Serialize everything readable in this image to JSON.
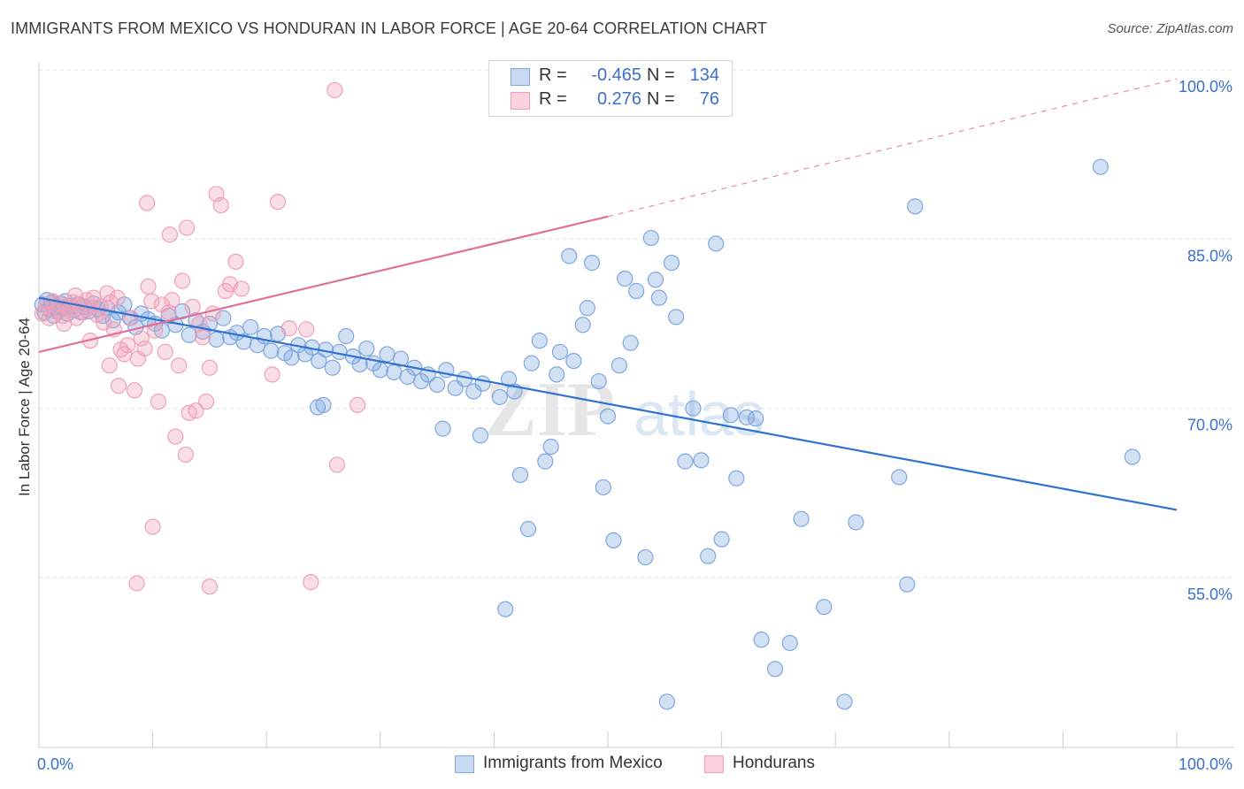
{
  "header": {
    "title": "IMMIGRANTS FROM MEXICO VS HONDURAN IN LABOR FORCE | AGE 20-64 CORRELATION CHART",
    "source": "Source: ZipAtlas.com"
  },
  "watermark": {
    "zip": "ZIP",
    "atlas": "atlas"
  },
  "legend": {
    "rows": [
      {
        "r_label": "R =",
        "r_value": "-0.465",
        "n_label": "N =",
        "n_value": "134",
        "color": "#7fa7e0"
      },
      {
        "r_label": "R =",
        "r_value": "0.276",
        "n_label": "N =",
        "n_value": "76",
        "color": "#f0a0b8"
      }
    ]
  },
  "bottom_legend": [
    {
      "label": "Immigrants from Mexico",
      "color": "#7fa7e0"
    },
    {
      "label": "Hondurans",
      "color": "#f0a0b8"
    }
  ],
  "chart_data": {
    "type": "scatter",
    "title": "IMMIGRANTS FROM MEXICO VS HONDURAN IN LABOR FORCE | AGE 20-64 CORRELATION CHART",
    "xlabel": "",
    "ylabel": "In Labor Force | Age 20-64",
    "xlim": [
      0,
      100
    ],
    "ylim": [
      40,
      103
    ],
    "x_tick_labels": [
      {
        "value": 0,
        "label": "0.0%"
      },
      {
        "value": 100,
        "label": "100.0%"
      }
    ],
    "y_tick_labels": [
      {
        "value": 55,
        "label": "55.0%"
      },
      {
        "value": 70,
        "label": "70.0%"
      },
      {
        "value": 85,
        "label": "85.0%"
      },
      {
        "value": 100,
        "label": "100.0%"
      }
    ],
    "grid": true,
    "legend_position": "top-center",
    "series": [
      {
        "name": "Immigrants from Mexico",
        "color": "#7fa7e0",
        "line_color": "#2f72d0",
        "trend": {
          "x0": 0,
          "y0": 79.8,
          "x1": 100,
          "y1": 61.0,
          "dashed_from": 100
        },
        "points": [
          [
            0.3,
            79.2
          ],
          [
            0.5,
            78.5
          ],
          [
            0.7,
            79.6
          ],
          [
            0.9,
            78.8
          ],
          [
            1.1,
            79.4
          ],
          [
            1.3,
            78.2
          ],
          [
            1.5,
            79.0
          ],
          [
            1.7,
            78.6
          ],
          [
            1.9,
            79.3
          ],
          [
            2.1,
            78.9
          ],
          [
            2.3,
            79.5
          ],
          [
            2.5,
            78.4
          ],
          [
            2.8,
            79.1
          ],
          [
            3.1,
            78.7
          ],
          [
            3.4,
            79.2
          ],
          [
            3.7,
            78.5
          ],
          [
            4.0,
            79.0
          ],
          [
            4.4,
            78.6
          ],
          [
            4.8,
            79.3
          ],
          [
            5.2,
            78.8
          ],
          [
            5.6,
            78.2
          ],
          [
            6.0,
            78.9
          ],
          [
            6.5,
            77.8
          ],
          [
            7.0,
            78.5
          ],
          [
            7.5,
            79.2
          ],
          [
            8.0,
            78.0
          ],
          [
            8.5,
            77.2
          ],
          [
            9.0,
            78.4
          ],
          [
            9.6,
            77.9
          ],
          [
            10.2,
            77.5
          ],
          [
            10.8,
            76.9
          ],
          [
            11.4,
            78.2
          ],
          [
            12.0,
            77.4
          ],
          [
            12.6,
            78.6
          ],
          [
            13.2,
            76.5
          ],
          [
            13.8,
            77.8
          ],
          [
            14.4,
            76.8
          ],
          [
            15.0,
            77.5
          ],
          [
            15.6,
            76.1
          ],
          [
            16.2,
            78.0
          ],
          [
            16.8,
            76.3
          ],
          [
            17.4,
            76.7
          ],
          [
            18.0,
            75.9
          ],
          [
            18.6,
            77.2
          ],
          [
            19.2,
            75.6
          ],
          [
            19.8,
            76.4
          ],
          [
            20.4,
            75.1
          ],
          [
            21.0,
            76.6
          ],
          [
            21.6,
            74.9
          ],
          [
            22.2,
            74.5
          ],
          [
            22.8,
            75.6
          ],
          [
            23.4,
            74.8
          ],
          [
            24.0,
            75.4
          ],
          [
            24.6,
            74.2
          ],
          [
            25.2,
            75.2
          ],
          [
            25.8,
            73.6
          ],
          [
            26.4,
            75.0
          ],
          [
            27.0,
            76.4
          ],
          [
            27.6,
            74.6
          ],
          [
            28.2,
            73.9
          ],
          [
            28.8,
            75.3
          ],
          [
            29.4,
            74.0
          ],
          [
            30.0,
            73.4
          ],
          [
            30.6,
            74.8
          ],
          [
            31.2,
            73.2
          ],
          [
            31.8,
            74.4
          ],
          [
            32.4,
            72.8
          ],
          [
            33.0,
            73.6
          ],
          [
            33.6,
            72.4
          ],
          [
            34.2,
            73.0
          ],
          [
            35.0,
            72.1
          ],
          [
            35.8,
            73.4
          ],
          [
            36.6,
            71.8
          ],
          [
            37.4,
            72.6
          ],
          [
            38.2,
            71.5
          ],
          [
            39.0,
            72.2
          ],
          [
            24.5,
            70.1
          ],
          [
            25.0,
            70.3
          ],
          [
            35.5,
            68.2
          ],
          [
            38.8,
            67.6
          ],
          [
            40.5,
            71.0
          ],
          [
            41.3,
            72.6
          ],
          [
            41.8,
            71.5
          ],
          [
            42.3,
            64.1
          ],
          [
            43.0,
            59.3
          ],
          [
            43.3,
            74.0
          ],
          [
            44.0,
            76.0
          ],
          [
            44.5,
            65.3
          ],
          [
            45.0,
            66.6
          ],
          [
            45.5,
            73.0
          ],
          [
            45.8,
            75.0
          ],
          [
            46.6,
            83.5
          ],
          [
            47.0,
            74.2
          ],
          [
            47.8,
            77.4
          ],
          [
            48.6,
            82.9
          ],
          [
            49.2,
            72.4
          ],
          [
            49.6,
            63.0
          ],
          [
            50.0,
            69.3
          ],
          [
            50.5,
            58.3
          ],
          [
            51.0,
            73.8
          ],
          [
            51.5,
            81.5
          ],
          [
            52.0,
            75.8
          ],
          [
            52.5,
            80.4
          ],
          [
            53.3,
            56.8
          ],
          [
            53.8,
            85.1
          ],
          [
            54.2,
            81.4
          ],
          [
            54.5,
            79.8
          ],
          [
            55.2,
            44.0
          ],
          [
            55.6,
            82.9
          ],
          [
            56.0,
            78.1
          ],
          [
            56.8,
            65.3
          ],
          [
            57.5,
            70.0
          ],
          [
            58.2,
            65.4
          ],
          [
            58.8,
            56.9
          ],
          [
            59.5,
            84.6
          ],
          [
            60.0,
            58.4
          ],
          [
            60.8,
            69.4
          ],
          [
            61.3,
            63.8
          ],
          [
            62.2,
            69.2
          ],
          [
            63.0,
            69.1
          ],
          [
            63.5,
            49.5
          ],
          [
            64.7,
            46.9
          ],
          [
            66.0,
            49.2
          ],
          [
            67.0,
            60.2
          ],
          [
            69.0,
            52.4
          ],
          [
            70.8,
            44.0
          ],
          [
            71.8,
            59.9
          ],
          [
            75.6,
            63.9
          ],
          [
            76.3,
            54.4
          ],
          [
            77.0,
            87.9
          ],
          [
            93.3,
            91.4
          ],
          [
            96.1,
            65.7
          ],
          [
            41.0,
            52.2
          ],
          [
            48.2,
            78.9
          ]
        ]
      },
      {
        "name": "Hondurans",
        "color": "#f0a0b8",
        "line_color": "#e0709a",
        "trend": {
          "x0": 0,
          "y0": 75.0,
          "x1": 50,
          "y1": 87.0,
          "dashed_to": 100,
          "y_at_100": 99.2
        },
        "points": [
          [
            0.3,
            78.4
          ],
          [
            0.6,
            79.1
          ],
          [
            0.9,
            78.0
          ],
          [
            1.2,
            79.5
          ],
          [
            1.5,
            78.6
          ],
          [
            1.8,
            79.3
          ],
          [
            2.1,
            78.2
          ],
          [
            2.4,
            79.0
          ],
          [
            2.7,
            78.7
          ],
          [
            3.0,
            79.4
          ],
          [
            3.3,
            78.0
          ],
          [
            3.6,
            79.2
          ],
          [
            3.9,
            78.5
          ],
          [
            4.2,
            79.6
          ],
          [
            4.5,
            78.9
          ],
          [
            4.8,
            79.8
          ],
          [
            5.1,
            78.3
          ],
          [
            5.4,
            79.0
          ],
          [
            5.7,
            77.6
          ],
          [
            6.0,
            80.2
          ],
          [
            6.3,
            79.4
          ],
          [
            6.6,
            77.0
          ],
          [
            6.9,
            79.8
          ],
          [
            7.2,
            75.2
          ],
          [
            7.5,
            74.8
          ],
          [
            7.8,
            75.6
          ],
          [
            8.1,
            78.0
          ],
          [
            8.4,
            71.6
          ],
          [
            8.7,
            74.4
          ],
          [
            9.0,
            76.2
          ],
          [
            9.3,
            75.3
          ],
          [
            9.6,
            80.8
          ],
          [
            9.9,
            79.5
          ],
          [
            10.2,
            76.9
          ],
          [
            10.5,
            70.6
          ],
          [
            10.8,
            79.2
          ],
          [
            11.1,
            75.0
          ],
          [
            11.4,
            78.5
          ],
          [
            11.7,
            79.6
          ],
          [
            12.0,
            67.5
          ],
          [
            12.3,
            73.8
          ],
          [
            12.6,
            81.3
          ],
          [
            12.9,
            65.9
          ],
          [
            13.2,
            69.6
          ],
          [
            13.5,
            79.0
          ],
          [
            13.8,
            69.8
          ],
          [
            14.1,
            77.5
          ],
          [
            14.4,
            76.3
          ],
          [
            14.7,
            70.6
          ],
          [
            15.0,
            73.6
          ],
          [
            15.3,
            78.4
          ],
          [
            15.6,
            89.0
          ],
          [
            16.0,
            88.0
          ],
          [
            16.4,
            80.4
          ],
          [
            16.8,
            81.0
          ],
          [
            17.3,
            83.0
          ],
          [
            17.8,
            80.6
          ],
          [
            20.5,
            73.0
          ],
          [
            21.0,
            88.3
          ],
          [
            22.0,
            77.1
          ],
          [
            23.5,
            77.0
          ],
          [
            23.9,
            54.6
          ],
          [
            26.0,
            98.2
          ],
          [
            26.2,
            65.0
          ],
          [
            28.0,
            70.3
          ],
          [
            9.5,
            88.2
          ],
          [
            11.5,
            85.4
          ],
          [
            13.0,
            86.0
          ],
          [
            7.0,
            72.0
          ],
          [
            6.2,
            73.8
          ],
          [
            4.5,
            76.0
          ],
          [
            8.6,
            54.5
          ],
          [
            10.0,
            59.5
          ],
          [
            15.0,
            54.2
          ],
          [
            3.2,
            80.0
          ],
          [
            2.2,
            77.5
          ]
        ]
      }
    ]
  }
}
